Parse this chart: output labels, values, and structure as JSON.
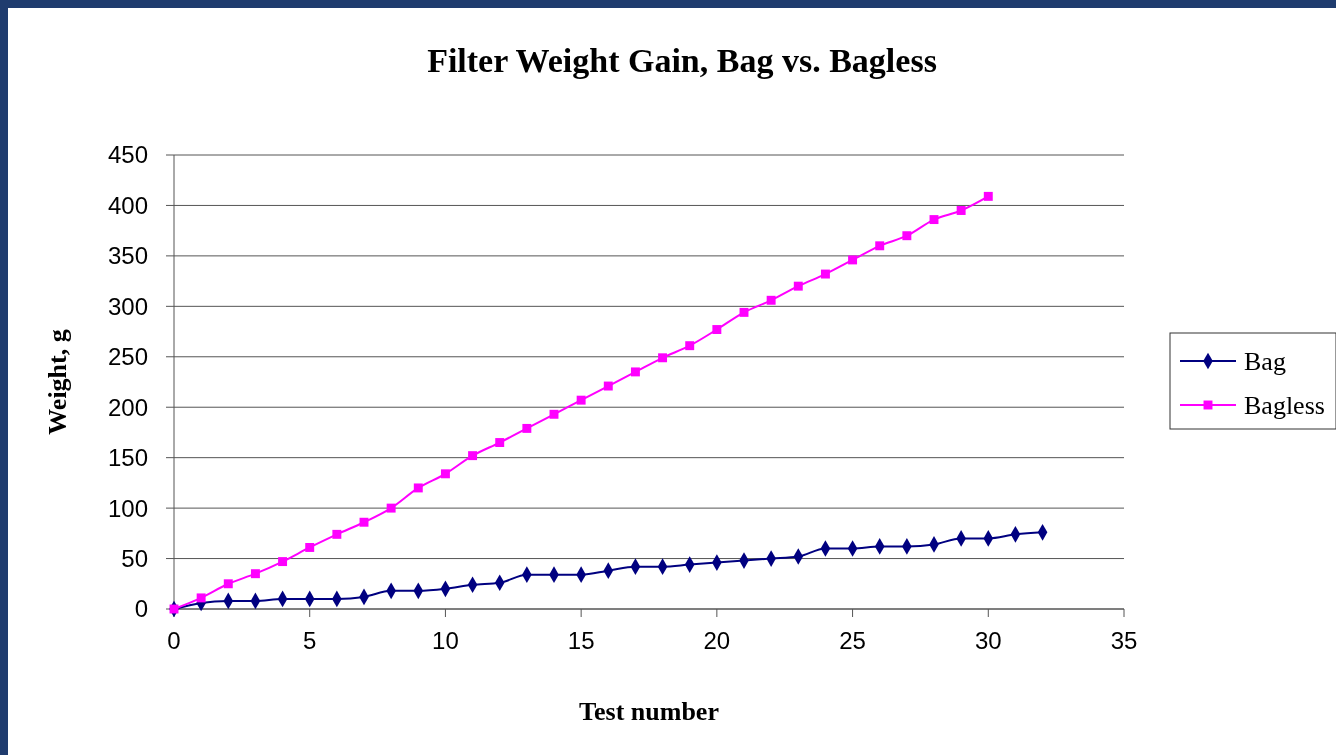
{
  "chart_data": {
    "type": "line",
    "title": "Filter Weight Gain, Bag vs. Bagless",
    "xlabel": "Test number",
    "ylabel": "Weight, g",
    "xlim": [
      0,
      35
    ],
    "xticks": [
      0,
      5,
      10,
      15,
      20,
      25,
      30,
      35
    ],
    "ylim": [
      0,
      450
    ],
    "yticks": [
      0,
      50,
      100,
      150,
      200,
      250,
      300,
      350,
      400,
      450
    ],
    "grid": "y",
    "legend": "right",
    "series": [
      {
        "name": "Bag",
        "color": "#000080",
        "marker": "diamond",
        "x": [
          0,
          1,
          2,
          3,
          4,
          5,
          6,
          7,
          8,
          9,
          10,
          11,
          12,
          13,
          14,
          15,
          16,
          17,
          18,
          19,
          20,
          21,
          22,
          23,
          24,
          25,
          26,
          27,
          28,
          29,
          30,
          31,
          32
        ],
        "values": [
          0,
          6,
          8,
          8,
          10,
          10,
          10,
          12,
          18,
          18,
          20,
          24,
          26,
          34,
          34,
          34,
          38,
          42,
          42,
          44,
          46,
          48,
          50,
          52,
          60,
          60,
          62,
          62,
          64,
          70,
          70,
          74,
          76
        ]
      },
      {
        "name": "Bagless",
        "color": "#ff00ff",
        "marker": "square",
        "x": [
          0,
          1,
          2,
          3,
          4,
          5,
          6,
          7,
          8,
          9,
          10,
          11,
          12,
          13,
          14,
          15,
          16,
          17,
          18,
          19,
          20,
          21,
          22,
          23,
          24,
          25,
          26,
          27,
          28,
          29,
          30
        ],
        "values": [
          0,
          11,
          25,
          35,
          47,
          61,
          74,
          86,
          100,
          120,
          134,
          152,
          165,
          179,
          193,
          207,
          221,
          235,
          249,
          261,
          277,
          294,
          306,
          320,
          332,
          346,
          360,
          370,
          386,
          395,
          409
        ]
      }
    ]
  }
}
